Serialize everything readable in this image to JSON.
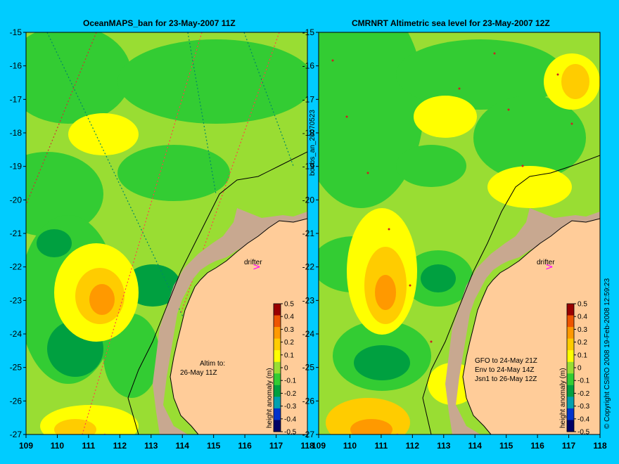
{
  "left_panel": {
    "title": "OceanMAPS_ban for 23-May-2007 11Z",
    "drifter_label": "drifter",
    "note_lines": [
      "Altim to:",
      "26-May 11Z"
    ]
  },
  "right_panel": {
    "title": "CMRNRT Altimetric sea level  for 23-May-2007 12Z",
    "drifter_label": "drifter",
    "note_lines": [
      "GFO to 24-May 21Z",
      "Env to 24-May 14Z",
      "Jsn1 to 26-May 12Z"
    ]
  },
  "side_label": "boobs_an_20070523",
  "copyright": "© Copyright CSIRO 2008  19-Feb-2008 12:59:23",
  "colorbar": {
    "label": "height anomaly (m)",
    "ticks": [
      "0.5",
      "0.4",
      "0.3",
      "0.2",
      "0.1",
      "0",
      "-0.1",
      "-0.2",
      "-0.3",
      "-0.4",
      "-0.5"
    ]
  },
  "x_ticks": [
    "109",
    "110",
    "111",
    "112",
    "113",
    "114",
    "115",
    "116",
    "117",
    "118"
  ],
  "y_ticks": [
    "-15",
    "-16",
    "-17",
    "-18",
    "-19",
    "-20",
    "-21",
    "-22",
    "-23",
    "-24",
    "-25",
    "-26",
    "-27"
  ],
  "colors": {
    "land": "#ffcc99",
    "shelf": "#c8a890",
    "drifter": "#ff00ff",
    "colorbar": [
      "#000066",
      "#0033cc",
      "#00a0b0",
      "#00a040",
      "#33cc33",
      "#99dd33",
      "#ffff00",
      "#ffcc00",
      "#ff9900",
      "#ee5500",
      "#990000"
    ]
  }
}
